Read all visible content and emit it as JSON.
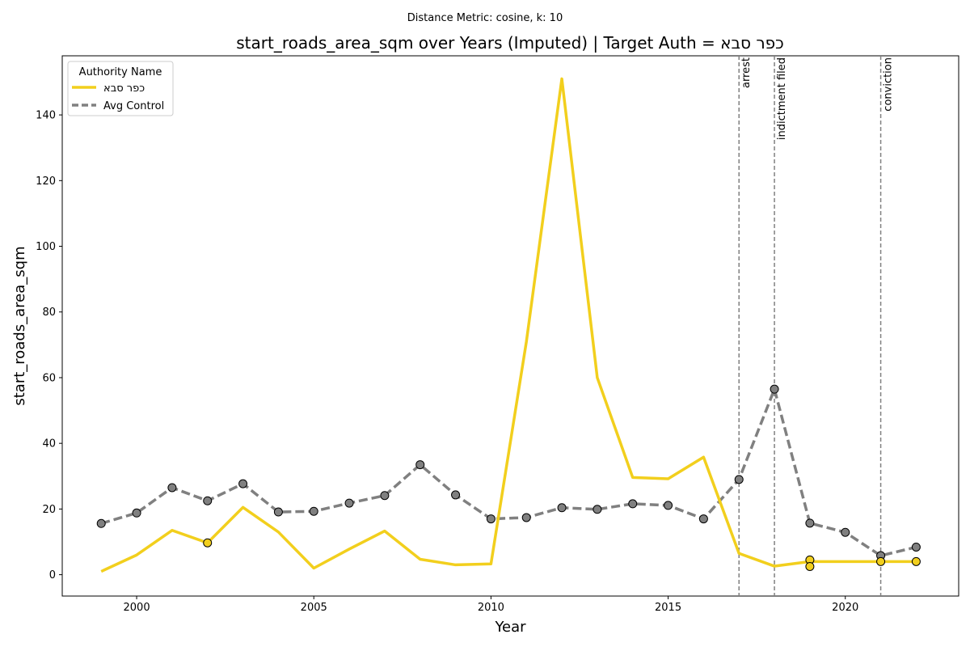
{
  "chart_data": {
    "type": "line",
    "suptitle": "Distance Metric: cosine, k: 10",
    "title": "start_roads_area_sqm over Years (Imputed) | Target Auth = כפר סבא",
    "xlabel": "Year",
    "ylabel": "start_roads_area_sqm",
    "xlim": [
      1997.9,
      2023.2
    ],
    "ylim": [
      -6.5,
      158
    ],
    "x_ticks": [
      2000,
      2005,
      2010,
      2015,
      2020
    ],
    "y_ticks": [
      0,
      20,
      40,
      60,
      80,
      100,
      120,
      140
    ],
    "grid": false,
    "legend": {
      "title": "Authority Name",
      "placement": "upper-left",
      "entries": [
        "כפר סבא",
        "Avg Control"
      ]
    },
    "series": [
      {
        "name": "כפר סבא",
        "color": "#f2cf1d",
        "style": "solid",
        "x": [
          1999,
          2000,
          2001,
          2002,
          2003,
          2004,
          2005,
          2006,
          2007,
          2008,
          2009,
          2010,
          2011,
          2012,
          2013,
          2014,
          2015,
          2016,
          2017,
          2018,
          2019,
          2020,
          2021,
          2022
        ],
        "y": [
          1,
          6,
          13.5,
          9.7,
          20.5,
          13,
          2,
          7.8,
          13.3,
          4.7,
          3,
          3.3,
          71,
          151,
          60,
          29.6,
          29.2,
          35.8,
          6.5,
          2.6,
          4,
          4,
          4,
          4
        ],
        "markers": [
          {
            "x": 2002,
            "y": 9.7
          },
          {
            "x": 2019,
            "y": 4.5
          },
          {
            "x": 2019,
            "y": 2.5
          },
          {
            "x": 2021,
            "y": 4
          },
          {
            "x": 2022,
            "y": 4
          }
        ]
      },
      {
        "name": "Avg Control",
        "color": "#808080",
        "style": "dashed",
        "x": [
          1999,
          2000,
          2001,
          2002,
          2003,
          2004,
          2005,
          2006,
          2007,
          2008,
          2009,
          2010,
          2011,
          2012,
          2013,
          2014,
          2015,
          2016,
          2017,
          2018,
          2019,
          2020,
          2021,
          2022
        ],
        "y": [
          15.6,
          18.8,
          26.5,
          22.5,
          27.7,
          19.1,
          19.3,
          21.8,
          24.1,
          33.5,
          24.3,
          17,
          17.4,
          20.4,
          19.9,
          21.6,
          21.1,
          17,
          29,
          56.5,
          15.7,
          12.9,
          5.8,
          8.4
        ],
        "markers_all": true
      }
    ],
    "events": [
      {
        "x": 2017,
        "label": "arrest"
      },
      {
        "x": 2018,
        "label": "indictment filed"
      },
      {
        "x": 2021,
        "label": "conviction"
      }
    ]
  }
}
